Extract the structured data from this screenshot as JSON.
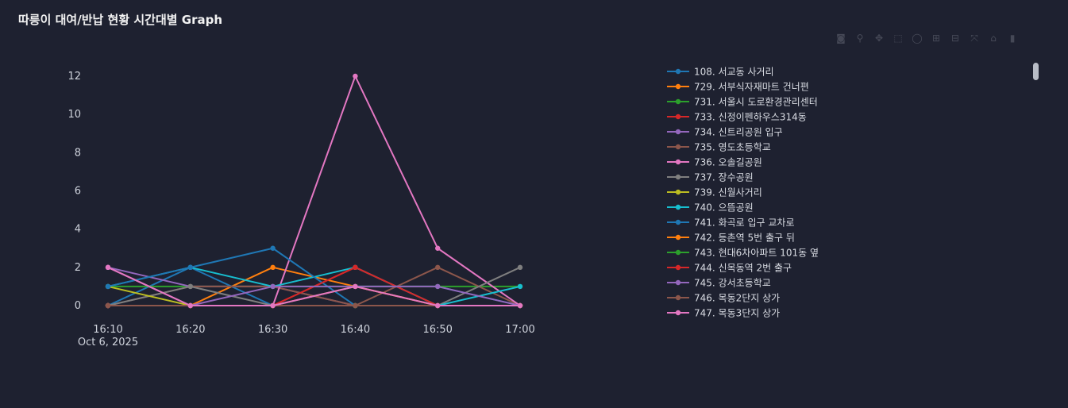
{
  "title": "따릉이 대여/반납 현황 시간대별 Graph",
  "modebar": {
    "icons": [
      {
        "name": "camera-icon",
        "glyph": "◙"
      },
      {
        "name": "zoom-icon",
        "glyph": "⚲"
      },
      {
        "name": "pan-icon",
        "glyph": "✥"
      },
      {
        "name": "box-select-icon",
        "glyph": "⬚"
      },
      {
        "name": "lasso-select-icon",
        "glyph": "◯"
      },
      {
        "name": "zoom-in-icon",
        "glyph": "⊞"
      },
      {
        "name": "zoom-out-icon",
        "glyph": "⊟"
      },
      {
        "name": "autoscale-icon",
        "glyph": "⤧"
      },
      {
        "name": "home-icon",
        "glyph": "⌂"
      },
      {
        "name": "plotly-logo-icon",
        "glyph": "▮"
      }
    ]
  },
  "chart_data": {
    "type": "line",
    "title": "따릉이 대여/반납 현황 시간대별 Graph",
    "x": [
      "16:10",
      "16:20",
      "16:30",
      "16:40",
      "16:50",
      "17:00"
    ],
    "x_sublabel": "Oct 6, 2025",
    "ylim": [
      -0.9,
      13.4
    ],
    "yticks": [
      0,
      2,
      4,
      6,
      8,
      10,
      12
    ],
    "grid": false,
    "legend_position": "right",
    "series": [
      {
        "name": "108. 서교동 사거리",
        "color": "#1f77b4",
        "values": [
          0,
          2,
          0,
          1,
          1,
          0
        ]
      },
      {
        "name": "729. 서부식자재마트 건너편",
        "color": "#ff7f0e",
        "values": [
          0,
          0,
          2,
          1,
          0,
          0
        ]
      },
      {
        "name": "731. 서울시 도로환경관리센터",
        "color": "#2ca02c",
        "values": [
          1,
          1,
          1,
          1,
          1,
          1
        ]
      },
      {
        "name": "733. 신정이펜하우스314동",
        "color": "#d62728",
        "values": [
          0,
          0,
          0,
          2,
          0,
          0
        ]
      },
      {
        "name": "734. 신트리공원 입구",
        "color": "#9467bd",
        "values": [
          2,
          1,
          1,
          0,
          0,
          0
        ]
      },
      {
        "name": "735. 영도초등학교",
        "color": "#8c564b",
        "values": [
          0,
          1,
          1,
          0,
          2,
          0
        ]
      },
      {
        "name": "736. 오솔길공원",
        "color": "#e377c2",
        "values": [
          2,
          0,
          0,
          12,
          3,
          0
        ]
      },
      {
        "name": "737. 장수공원",
        "color": "#7f7f7f",
        "values": [
          0,
          1,
          0,
          0,
          0,
          2
        ]
      },
      {
        "name": "739. 신월사거리",
        "color": "#bcbd22",
        "values": [
          1,
          0,
          0,
          0,
          0,
          0
        ]
      },
      {
        "name": "740. 으뜸공원",
        "color": "#17becf",
        "values": [
          1,
          2,
          1,
          2,
          0,
          1
        ]
      },
      {
        "name": "741. 화곡로 입구 교차로",
        "color": "#1f77b4",
        "values": [
          1,
          2,
          3,
          0,
          0,
          0
        ]
      },
      {
        "name": "742. 등촌역 5번 출구 뒤",
        "color": "#ff7f0e",
        "values": [
          0,
          0,
          0,
          1,
          0,
          0
        ]
      },
      {
        "name": "743. 현대6차아파트 101동 옆",
        "color": "#2ca02c",
        "values": [
          0,
          0,
          0,
          0,
          0,
          0
        ]
      },
      {
        "name": "744. 신목동역 2번 출구",
        "color": "#d62728",
        "values": [
          0,
          0,
          0,
          2,
          0,
          0
        ]
      },
      {
        "name": "745. 강서초등학교",
        "color": "#9467bd",
        "values": [
          0,
          0,
          1,
          1,
          1,
          0
        ]
      },
      {
        "name": "746. 목동2단지 상가",
        "color": "#8c564b",
        "values": [
          0,
          0,
          0,
          0,
          0,
          0
        ]
      },
      {
        "name": "747. 목동3단지 상가",
        "color": "#e377c2",
        "values": [
          2,
          0,
          0,
          1,
          0,
          0
        ]
      }
    ]
  }
}
